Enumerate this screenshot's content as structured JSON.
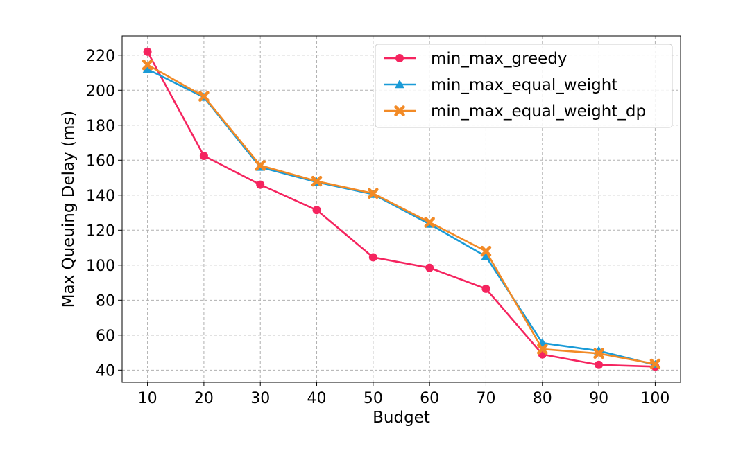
{
  "chart_data": {
    "type": "line",
    "title": "",
    "xlabel": "Budget",
    "ylabel": "Max Queuing Delay (ms)",
    "x": [
      10,
      20,
      30,
      40,
      50,
      60,
      70,
      80,
      90,
      100
    ],
    "xticks": [
      "10",
      "20",
      "30",
      "40",
      "50",
      "60",
      "70",
      "80",
      "90",
      "100"
    ],
    "yticks": [
      "40",
      "60",
      "80",
      "100",
      "120",
      "140",
      "160",
      "180",
      "200",
      "220"
    ],
    "xlim": [
      5.5,
      104.5
    ],
    "ylim": [
      33,
      231
    ],
    "grid": true,
    "legend_position": "top-right",
    "series": [
      {
        "name": "min_max_greedy",
        "color": "#f5245f",
        "marker": "circle",
        "values": [
          222,
          162.5,
          146,
          131.5,
          104.5,
          98.5,
          86.5,
          49,
          43,
          42
        ]
      },
      {
        "name": "min_max_equal_weight",
        "color": "#1a9bd7",
        "marker": "triangle",
        "values": [
          212,
          196,
          156,
          147.5,
          140.5,
          123.5,
          105,
          55.5,
          51,
          43
        ]
      },
      {
        "name": "min_max_equal_weight_dp",
        "color": "#f28a26",
        "marker": "x",
        "values": [
          214.5,
          196.5,
          157,
          148,
          141,
          124.5,
          108,
          52,
          49.5,
          43.5
        ]
      }
    ]
  }
}
